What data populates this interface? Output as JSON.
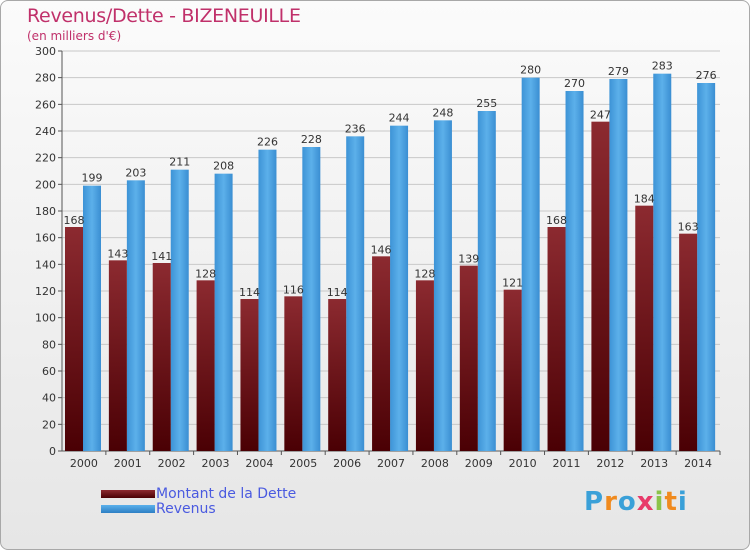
{
  "header": {
    "title": "Revenus/Dette - BIZENEUILLE",
    "subtitle": "(en milliers d'€)"
  },
  "chart_data": {
    "type": "bar",
    "title": "Revenus/Dette - BIZENEUILLE",
    "ylabel": "(en milliers d'€)",
    "xlabel": "",
    "categories": [
      "2000",
      "2001",
      "2002",
      "2003",
      "2004",
      "2005",
      "2006",
      "2007",
      "2008",
      "2009",
      "2010",
      "2011",
      "2012",
      "2013",
      "2014"
    ],
    "series": [
      {
        "name": "Montant de la Dette",
        "color": "#7a1a20",
        "values": [
          168,
          143,
          141,
          128,
          114,
          116,
          114,
          146,
          128,
          139,
          121,
          168,
          247,
          184,
          163
        ]
      },
      {
        "name": "Revenus",
        "color": "#4aa3e2",
        "values": [
          199,
          203,
          211,
          208,
          226,
          228,
          236,
          244,
          248,
          255,
          280,
          270,
          279,
          283,
          276
        ]
      }
    ],
    "ylim": [
      0,
      300
    ],
    "yticks": [
      0,
      20,
      40,
      60,
      80,
      100,
      120,
      140,
      160,
      180,
      200,
      220,
      240,
      260,
      280,
      300
    ],
    "grid": true,
    "legend_position": "bottom-left"
  },
  "legend": {
    "items": [
      {
        "label": "Montant de la Dette",
        "color": "#6b0e15"
      },
      {
        "label": "Revenus",
        "color": "#4aa3e2"
      }
    ]
  },
  "logo": {
    "letters": [
      "P",
      "r",
      "o",
      "x",
      "i",
      "t",
      "i"
    ],
    "colors": [
      "#3aa0d8",
      "#f08a1e",
      "#3aa0d8",
      "#e83a6a",
      "#8bc34a",
      "#f08a1e",
      "#3aa0d8"
    ]
  }
}
